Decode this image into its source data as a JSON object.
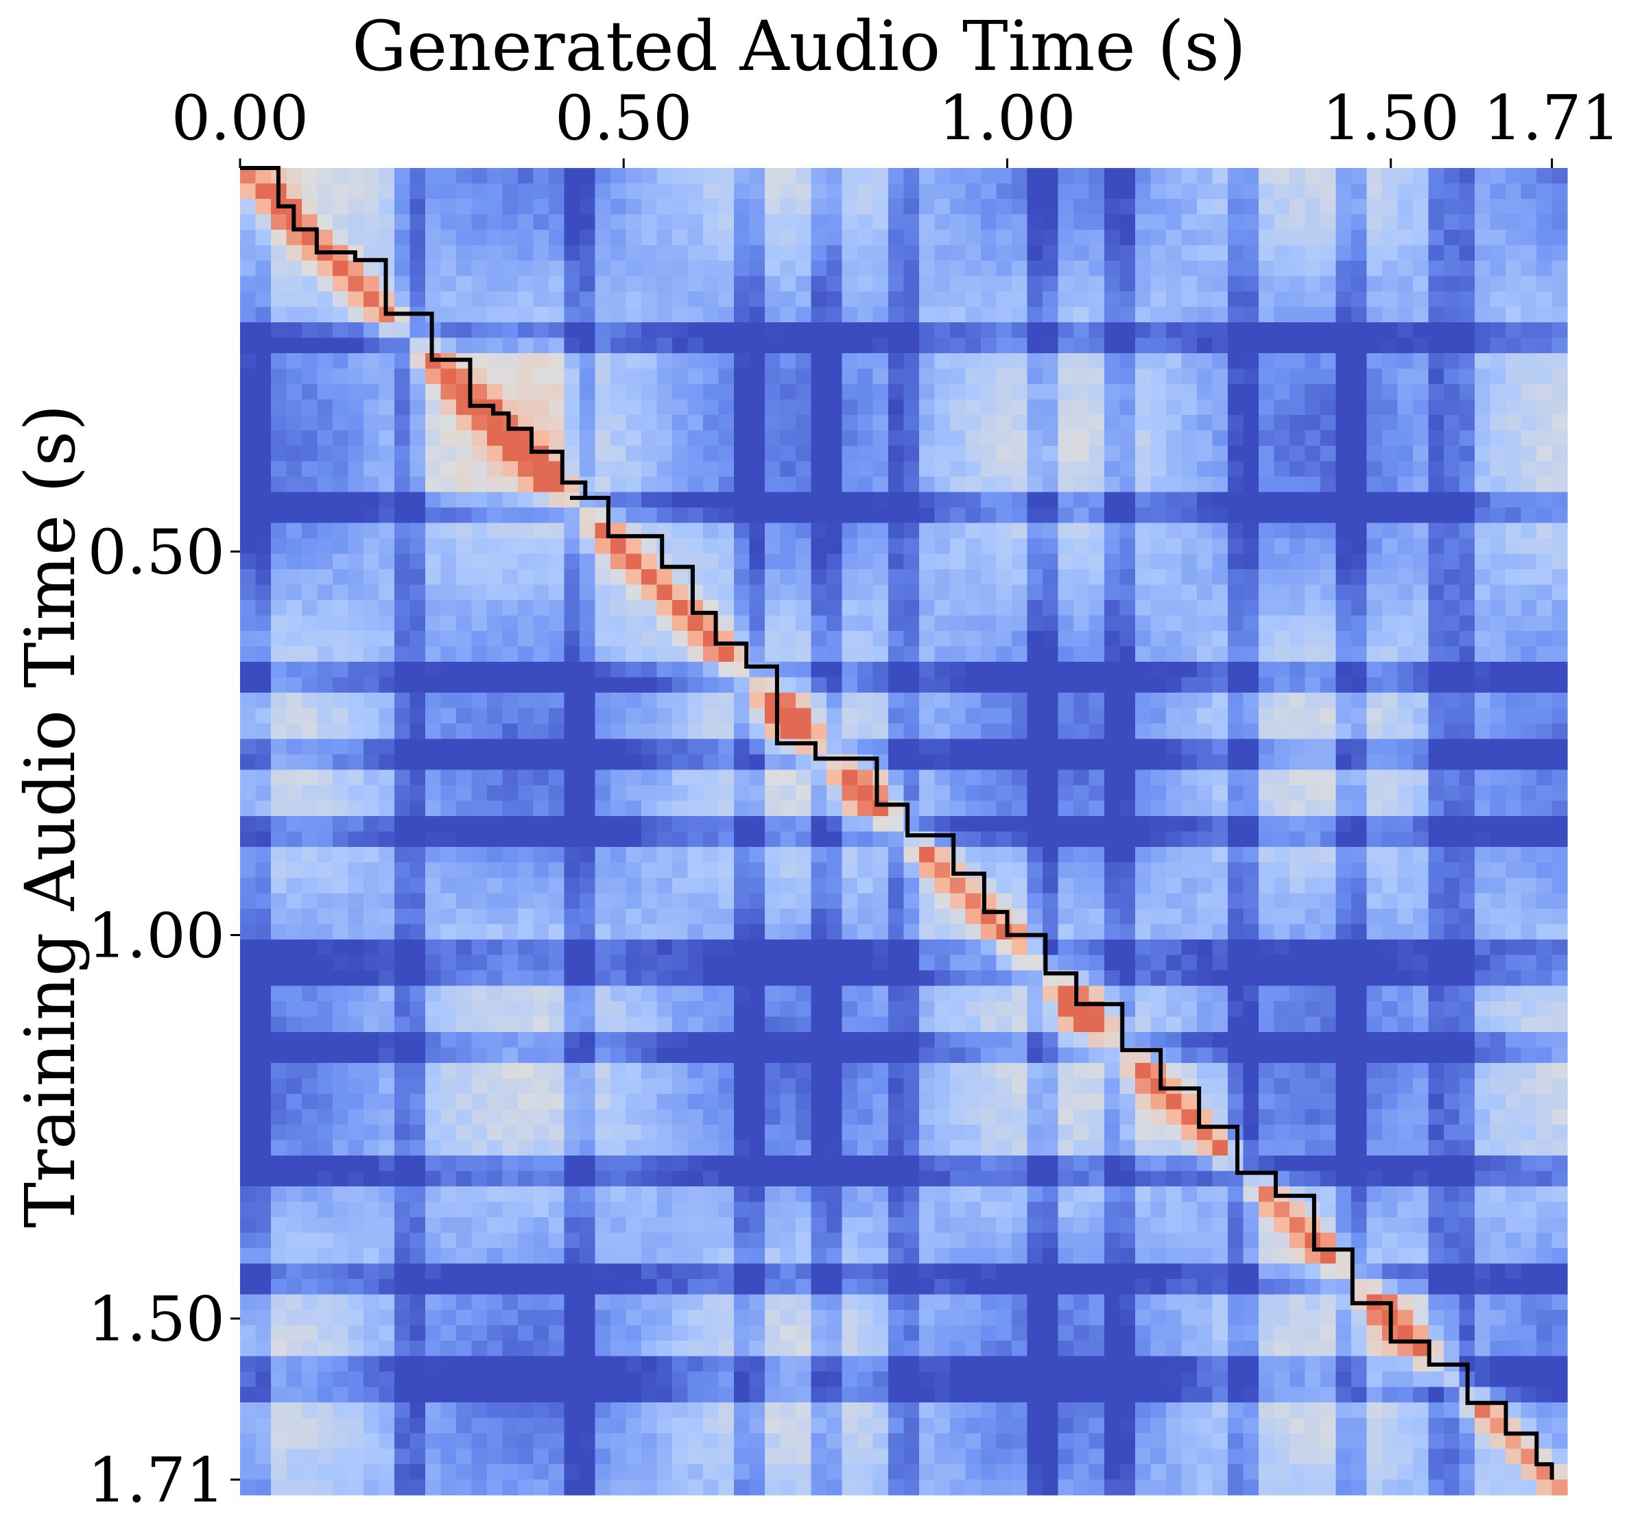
{
  "chart_data": {
    "type": "heatmap",
    "title": "",
    "xlabel": "Generated Audio Time (s)",
    "ylabel": "Training Audio Time (s)",
    "x_axis_position": "top",
    "xlim": [
      0,
      1.73
    ],
    "ylim": [
      0,
      1.73
    ],
    "x_ticks": [
      {
        "value": 0.0,
        "label": "0.00"
      },
      {
        "value": 0.5,
        "label": "0.50"
      },
      {
        "value": 1.0,
        "label": "1.00"
      },
      {
        "value": 1.5,
        "label": "1.50"
      },
      {
        "value": 1.71,
        "label": "1.71"
      }
    ],
    "y_ticks": [
      {
        "value": 0.5,
        "label": "0.50"
      },
      {
        "value": 1.0,
        "label": "1.00"
      },
      {
        "value": 1.5,
        "label": "1.50"
      },
      {
        "value": 1.71,
        "label": "1.71"
      }
    ],
    "colormap": [
      "#3b4cc0",
      "#6f92f3",
      "#aac7fd",
      "#dddddd",
      "#f7b89c",
      "#e26952"
    ],
    "grid": false,
    "legend": "none",
    "alignment_path": {
      "color": "#000000",
      "points": [
        [
          0.0,
          0.0
        ],
        [
          0.05,
          0.05
        ],
        [
          0.07,
          0.08
        ],
        [
          0.1,
          0.1
        ],
        [
          0.1,
          0.11
        ],
        [
          0.15,
          0.12
        ],
        [
          0.19,
          0.19
        ],
        [
          0.25,
          0.25
        ],
        [
          0.3,
          0.31
        ],
        [
          0.33,
          0.32
        ],
        [
          0.35,
          0.34
        ],
        [
          0.38,
          0.37
        ],
        [
          0.42,
          0.41
        ],
        [
          0.45,
          0.43
        ],
        [
          0.43,
          0.43
        ],
        [
          0.48,
          0.48
        ],
        [
          0.55,
          0.52
        ],
        [
          0.59,
          0.58
        ],
        [
          0.62,
          0.62
        ],
        [
          0.66,
          0.65
        ],
        [
          0.7,
          0.7
        ],
        [
          0.7,
          0.75
        ],
        [
          0.75,
          0.77
        ],
        [
          0.83,
          0.83
        ],
        [
          0.87,
          0.87
        ],
        [
          0.93,
          0.92
        ],
        [
          0.97,
          0.97
        ],
        [
          1.0,
          1.0
        ],
        [
          1.05,
          1.05
        ],
        [
          1.09,
          1.09
        ],
        [
          1.15,
          1.15
        ],
        [
          1.2,
          1.2
        ],
        [
          1.25,
          1.25
        ],
        [
          1.3,
          1.31
        ],
        [
          1.35,
          1.34
        ],
        [
          1.4,
          1.41
        ],
        [
          1.45,
          1.48
        ],
        [
          1.5,
          1.53
        ],
        [
          1.55,
          1.56
        ],
        [
          1.6,
          1.61
        ],
        [
          1.65,
          1.65
        ],
        [
          1.69,
          1.69
        ],
        [
          1.71,
          1.71
        ]
      ]
    },
    "block_boundaries_s": [
      0.22,
      0.44,
      0.66,
      0.76,
      0.87,
      1.04,
      1.15,
      1.31,
      1.45,
      1.58
    ]
  }
}
